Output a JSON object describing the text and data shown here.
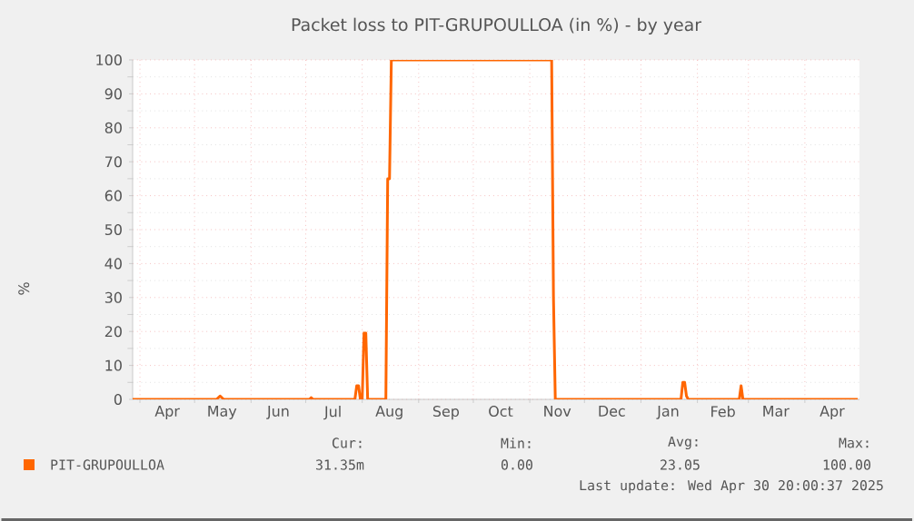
{
  "chart_data": {
    "type": "line",
    "title": "Packet loss to PIT-GRUPOULLOA (in %) - by year",
    "ylabel": "%",
    "xlim": [
      "2024-03-28",
      "2025-05-01"
    ],
    "ylim": [
      0,
      100
    ],
    "yticks": [
      0,
      10,
      20,
      30,
      40,
      50,
      60,
      70,
      80,
      90,
      100
    ],
    "xticks": [
      {
        "value": "2024-04-01",
        "label": null
      },
      {
        "value": "2024-04-16",
        "label": "Apr"
      },
      {
        "value": "2024-05-01",
        "label": null
      },
      {
        "value": "2024-05-16",
        "label": "May"
      },
      {
        "value": "2024-06-01",
        "label": null
      },
      {
        "value": "2024-06-16",
        "label": "Jun"
      },
      {
        "value": "2024-07-01",
        "label": null
      },
      {
        "value": "2024-07-16",
        "label": "Jul"
      },
      {
        "value": "2024-08-01",
        "label": null
      },
      {
        "value": "2024-08-16",
        "label": "Aug"
      },
      {
        "value": "2024-09-01",
        "label": null
      },
      {
        "value": "2024-09-16",
        "label": "Sep"
      },
      {
        "value": "2024-10-01",
        "label": null
      },
      {
        "value": "2024-10-16",
        "label": "Oct"
      },
      {
        "value": "2024-11-01",
        "label": null
      },
      {
        "value": "2024-11-16",
        "label": "Nov"
      },
      {
        "value": "2024-12-01",
        "label": null
      },
      {
        "value": "2024-12-16",
        "label": "Dec"
      },
      {
        "value": "2025-01-01",
        "label": null
      },
      {
        "value": "2025-01-16",
        "label": "Jan"
      },
      {
        "value": "2025-02-01",
        "label": null
      },
      {
        "value": "2025-02-15",
        "label": "Feb"
      },
      {
        "value": "2025-03-01",
        "label": null
      },
      {
        "value": "2025-03-16",
        "label": "Mar"
      },
      {
        "value": "2025-04-01",
        "label": null
      },
      {
        "value": "2025-04-16",
        "label": "Apr"
      }
    ],
    "grid": true,
    "legend": "bottom",
    "marker": "none",
    "line_style": "solid",
    "series": [
      {
        "name": "PIT-GRUPOULLOA",
        "color": "#ff6600",
        "x": [
          "2024-03-28",
          "2024-05-13",
          "2024-05-15",
          "2024-05-17",
          "2024-07-03",
          "2024-07-04",
          "2024-07-05",
          "2024-07-28",
          "2024-07-29",
          "2024-07-30",
          "2024-07-31",
          "2024-08-01",
          "2024-08-02",
          "2024-08-03",
          "2024-08-04",
          "2024-08-14",
          "2024-08-15",
          "2024-08-16",
          "2024-08-17",
          "2024-11-13",
          "2024-11-14",
          "2024-11-15",
          "2025-01-23",
          "2025-01-24",
          "2025-01-25",
          "2025-01-26",
          "2025-01-27",
          "2025-02-24",
          "2025-02-25",
          "2025-02-26",
          "2025-04-30"
        ],
        "values": [
          0,
          0,
          1,
          0,
          0,
          0.5,
          0,
          0,
          4,
          4,
          0,
          0,
          19.5,
          19.5,
          0,
          0,
          65,
          65,
          100,
          100,
          30,
          0,
          0,
          5,
          5,
          1,
          0,
          0,
          4,
          0,
          0
        ]
      }
    ],
    "annotations": [
      "Cur:",
      "31.35m",
      "Min:",
      "0.00",
      "Avg:",
      "23.05",
      "Max:",
      "100.00",
      "Last update: Wed Apr 30 20:00:37 2025"
    ]
  }
}
